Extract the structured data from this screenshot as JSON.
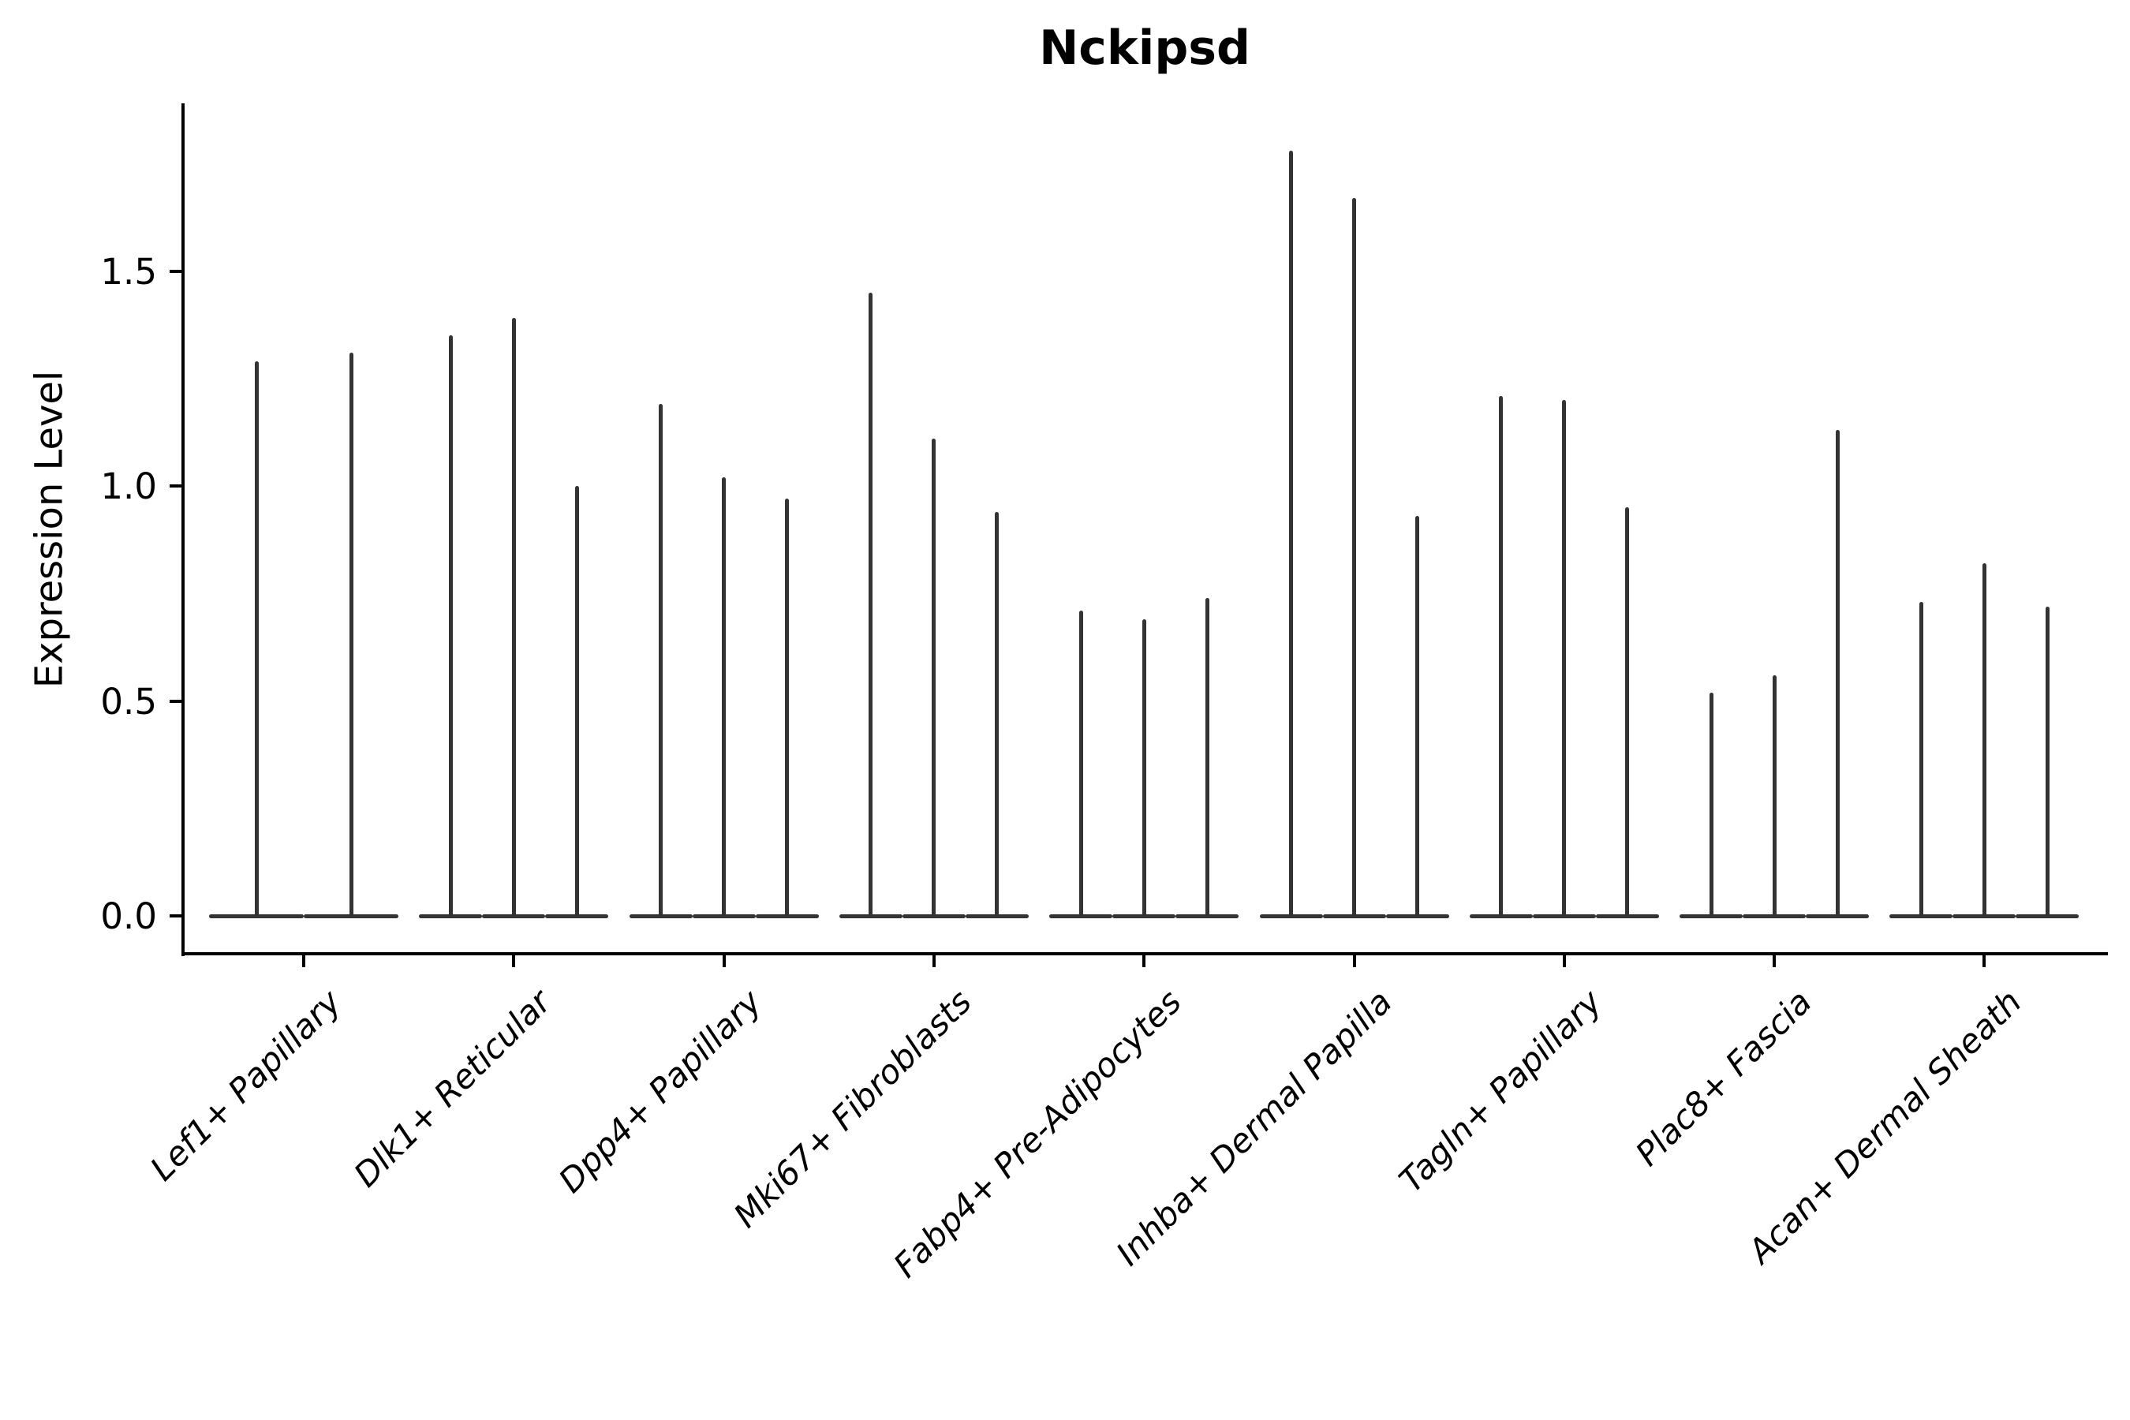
{
  "figure": {
    "title": "Nckipsd"
  },
  "chart_data": {
    "type": "violin",
    "title": "Nckipsd",
    "xlabel": "",
    "ylabel": "Expression Level",
    "ylim": [
      -0.09,
      1.89
    ],
    "yticks": [
      0.0,
      0.5,
      1.0,
      1.5
    ],
    "ytick_labels": [
      "0.0",
      "0.5",
      "1.0",
      "1.5"
    ],
    "grid": false,
    "legend": null,
    "violin_color": "#333333",
    "axis_color": "#000000",
    "style_note": "Sparse single-cell expression violin plot: every violin collapses to a thin vertical spike rising from 0 to its maximum value, with a flat lens-shaped base at 0; groups of violins share one baseline segment per category.",
    "categories": [
      "Lef1+ Papillary",
      "Dlk1+ Reticular",
      "Dpp4+ Papillary",
      "Mki67+ Fibroblasts",
      "Fabp4+ Pre-Adipocytes",
      "Inhba+ Dermal Papilla",
      "Tagln+ Papillary",
      "Plac8+ Fascia",
      "Acan+ Dermal Sheath"
    ],
    "groups": [
      {
        "category": "Lef1+ Papillary",
        "spike_maxima": [
          1.29,
          1.31
        ]
      },
      {
        "category": "Dlk1+ Reticular",
        "spike_maxima": [
          1.35,
          1.39,
          1.0
        ]
      },
      {
        "category": "Dpp4+ Papillary",
        "spike_maxima": [
          1.19,
          1.02,
          0.97
        ]
      },
      {
        "category": "Mki67+ Fibroblasts",
        "spike_maxima": [
          1.45,
          1.11,
          0.94
        ]
      },
      {
        "category": "Fabp4+ Pre-Adipocytes",
        "spike_maxima": [
          0.71,
          0.69,
          0.74
        ]
      },
      {
        "category": "Inhba+ Dermal Papilla",
        "spike_maxima": [
          1.78,
          1.67,
          0.93
        ]
      },
      {
        "category": "Tagln+ Papillary",
        "spike_maxima": [
          1.21,
          1.2,
          0.95
        ]
      },
      {
        "category": "Plac8+ Fascia",
        "spike_maxima": [
          0.52,
          0.56,
          1.13
        ]
      },
      {
        "category": "Acan+ Dermal Sheath",
        "spike_maxima": [
          0.73,
          0.82,
          0.72
        ]
      }
    ]
  }
}
